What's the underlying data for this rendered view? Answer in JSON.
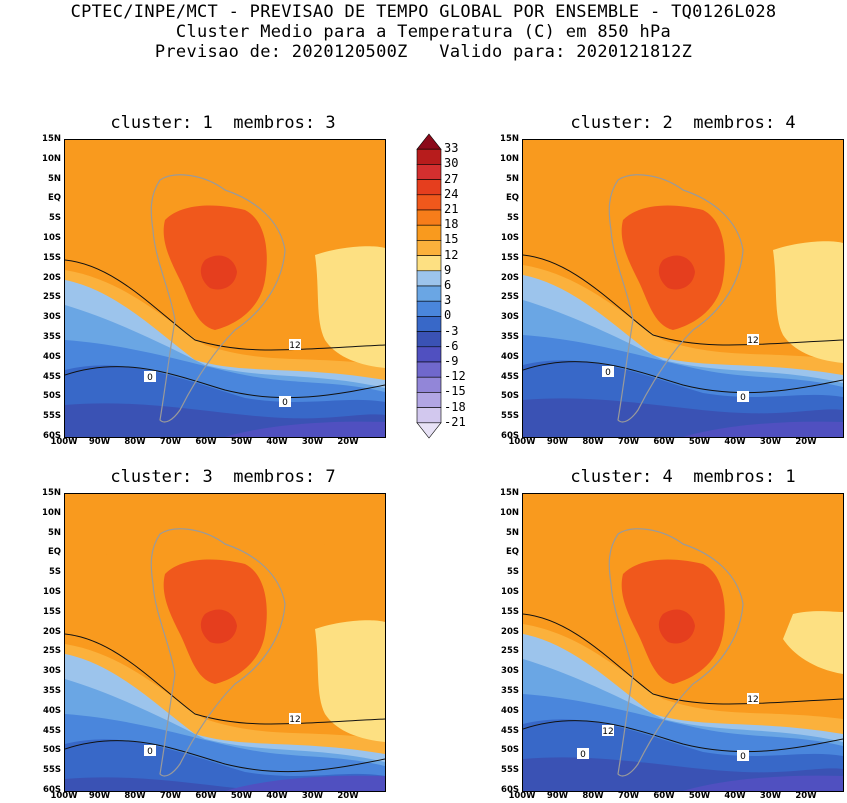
{
  "header": {
    "line1": "CPTEC/INPE/MCT - PREVISAO DE TEMPO GLOBAL POR ENSEMBLE - TQ0126L028",
    "line2": "Cluster Medio para a Temperatura (C) em 850 hPa",
    "line3": "Previsao de: 2020120500Z   Valido para: 2020121812Z"
  },
  "panels": [
    {
      "title": "cluster: 1  membros: 3",
      "contour_labels": [
        "12",
        "0",
        "0"
      ]
    },
    {
      "title": "cluster: 2  membros: 4",
      "contour_labels": [
        "12",
        "0",
        "0"
      ]
    },
    {
      "title": "cluster: 3  membros: 7",
      "contour_labels": [
        "12",
        "0"
      ]
    },
    {
      "title": "cluster: 4  membros: 1",
      "contour_labels": [
        "12",
        "12",
        "0",
        "0"
      ]
    }
  ],
  "lat_labels": [
    "15N",
    "10N",
    "5N",
    "EQ",
    "5S",
    "10S",
    "15S",
    "20S",
    "25S",
    "30S",
    "35S",
    "40S",
    "45S",
    "50S",
    "55S",
    "60S"
  ],
  "lon_labels": [
    "100W",
    "90W",
    "80W",
    "70W",
    "60W",
    "50W",
    "40W",
    "30W",
    "20W"
  ],
  "colorbar": {
    "labels": [
      "33",
      "30",
      "27",
      "24",
      "21",
      "18",
      "15",
      "12",
      "9",
      "6",
      "3",
      "0",
      "-3",
      "-6",
      "-9",
      "-12",
      "-15",
      "-18",
      "-21"
    ],
    "colors": [
      "#8b0a1a",
      "#b71c1c",
      "#d32f2f",
      "#e53e1e",
      "#f0581c",
      "#f77d1a",
      "#f99a1e",
      "#fbb13c",
      "#fde082",
      "#9cc4ec",
      "#6aa6e4",
      "#4a86dc",
      "#3868c8",
      "#3a52b4",
      "#5050c0",
      "#7068cc",
      "#9286d8",
      "#b2a6e4",
      "#d2c8ee",
      "#e8e2f6"
    ]
  }
}
